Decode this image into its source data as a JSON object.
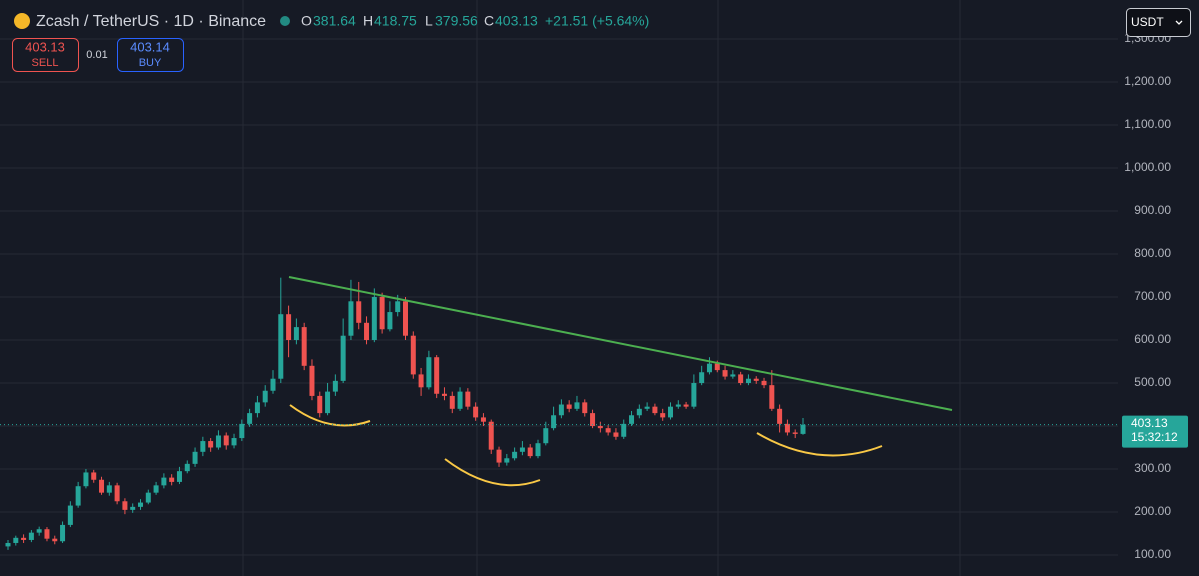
{
  "header": {
    "title": "Zcash / TetherUS · 1D · Binance",
    "o_label": "O",
    "open": 381.64,
    "h_label": "H",
    "high": 418.75,
    "l_label": "L",
    "low": 379.56,
    "c_label": "C",
    "close": 403.13,
    "change": "+21.51 (+5.64%)"
  },
  "order": {
    "sell_price": 403.13,
    "sell_label": "SELL",
    "spread": 0.01,
    "buy_price": 403.14,
    "buy_label": "BUY"
  },
  "currency": "USDT",
  "price_time": "15:32:12",
  "chart_data": {
    "type": "candlestick",
    "up_color": "#26a69a",
    "down_color": "#ef5350",
    "grid": true,
    "ylim": [
      51.2,
      1390.7
    ],
    "yticks": [
      {
        "value": 100,
        "label": "100.00"
      },
      {
        "value": 200,
        "label": "200.00"
      },
      {
        "value": 300,
        "label": "300.00"
      },
      {
        "value": 400,
        "label": "400.00"
      },
      {
        "value": 500,
        "label": "500.00"
      },
      {
        "value": 600,
        "label": "600.00"
      },
      {
        "value": 700,
        "label": "700.00"
      },
      {
        "value": 800,
        "label": "800.00"
      },
      {
        "value": 900,
        "label": "900.00"
      },
      {
        "value": 1000,
        "label": "1,000.00"
      },
      {
        "value": 1100,
        "label": "1,100.00"
      },
      {
        "value": 1200,
        "label": "1,200.00"
      },
      {
        "value": 1300,
        "label": "1,300.00"
      }
    ],
    "open": [
      120,
      128,
      140,
      135,
      152,
      160,
      138,
      132,
      170,
      215,
      260,
      292,
      275,
      245,
      262,
      225,
      205,
      212,
      222,
      245,
      262,
      280,
      270,
      295,
      312,
      340,
      365,
      350,
      378,
      355,
      372,
      405,
      430,
      455,
      482,
      510,
      660,
      600,
      630,
      540,
      470,
      430,
      480,
      505,
      610,
      690,
      640,
      600,
      700,
      625,
      665,
      690,
      610,
      520,
      490,
      560,
      475,
      470,
      440,
      480,
      445,
      420,
      410,
      345,
      315,
      325,
      340,
      350,
      330,
      360,
      395,
      425,
      450,
      440,
      455,
      430,
      400,
      395,
      385,
      375,
      405,
      425,
      440,
      445,
      430,
      420,
      445,
      450,
      445,
      500,
      525,
      545,
      530,
      515,
      520,
      500,
      510,
      505,
      495,
      440,
      405,
      385,
      381.64
    ],
    "high": [
      135,
      145,
      148,
      158,
      166,
      165,
      145,
      178,
      225,
      270,
      300,
      298,
      282,
      270,
      268,
      232,
      220,
      230,
      252,
      270,
      290,
      288,
      305,
      320,
      350,
      375,
      372,
      390,
      385,
      382,
      415,
      440,
      470,
      495,
      530,
      745,
      680,
      650,
      640,
      555,
      480,
      500,
      520,
      650,
      740,
      735,
      655,
      720,
      710,
      690,
      705,
      700,
      620,
      535,
      575,
      565,
      490,
      480,
      490,
      488,
      455,
      430,
      415,
      352,
      335,
      350,
      365,
      358,
      368,
      410,
      445,
      462,
      460,
      470,
      462,
      438,
      410,
      402,
      395,
      415,
      435,
      450,
      455,
      452,
      440,
      455,
      460,
      456,
      520,
      540,
      560,
      552,
      540,
      530,
      526,
      520,
      516,
      512,
      530,
      450,
      415,
      392,
      418.75
    ],
    "low": [
      112,
      122,
      128,
      130,
      145,
      132,
      125,
      128,
      165,
      210,
      255,
      268,
      240,
      238,
      218,
      195,
      198,
      205,
      218,
      240,
      255,
      262,
      265,
      290,
      305,
      330,
      340,
      345,
      345,
      348,
      365,
      398,
      420,
      445,
      475,
      500,
      560,
      590,
      530,
      460,
      420,
      425,
      470,
      500,
      600,
      625,
      590,
      595,
      615,
      620,
      655,
      600,
      510,
      470,
      485,
      465,
      460,
      430,
      435,
      438,
      412,
      400,
      335,
      305,
      308,
      320,
      332,
      325,
      325,
      355,
      390,
      418,
      432,
      435,
      422,
      395,
      385,
      378,
      368,
      370,
      400,
      418,
      435,
      425,
      412,
      415,
      440,
      440,
      440,
      495,
      520,
      525,
      508,
      510,
      495,
      495,
      498,
      488,
      435,
      385,
      378,
      372,
      379.56
    ],
    "close": [
      128,
      140,
      135,
      152,
      160,
      138,
      132,
      170,
      215,
      260,
      292,
      275,
      245,
      262,
      225,
      205,
      212,
      222,
      245,
      262,
      280,
      270,
      295,
      312,
      340,
      365,
      350,
      378,
      355,
      372,
      405,
      430,
      455,
      482,
      510,
      660,
      600,
      630,
      540,
      470,
      430,
      480,
      505,
      610,
      690,
      640,
      600,
      700,
      625,
      665,
      690,
      610,
      520,
      490,
      560,
      475,
      470,
      440,
      480,
      445,
      420,
      410,
      345,
      315,
      325,
      340,
      350,
      330,
      360,
      395,
      425,
      450,
      440,
      455,
      430,
      400,
      395,
      385,
      375,
      405,
      425,
      440,
      445,
      430,
      420,
      445,
      450,
      445,
      500,
      525,
      545,
      530,
      515,
      520,
      500,
      510,
      505,
      495,
      440,
      405,
      385,
      381.62,
      403.13
    ]
  }
}
